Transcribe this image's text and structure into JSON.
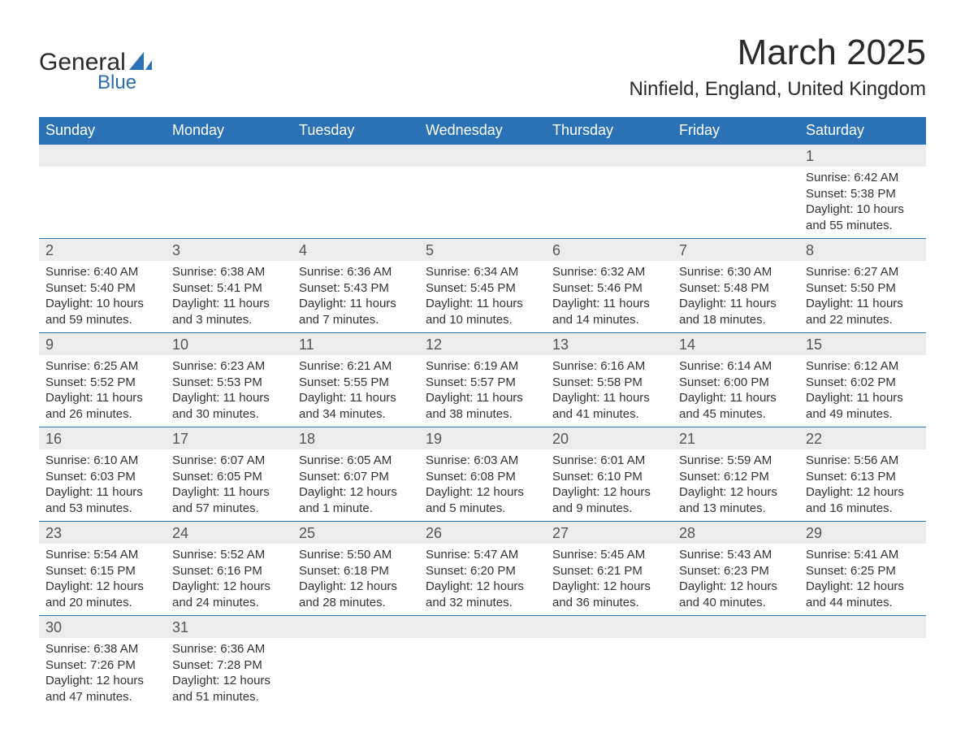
{
  "logo": {
    "line1": "General",
    "line2": "Blue",
    "icon_color": "#2a72b5"
  },
  "title": "March 2025",
  "location": "Ninfield, England, United Kingdom",
  "colors": {
    "header_bg": "#2a72b5",
    "header_fg": "#ffffff",
    "daynum_bg": "#ececec",
    "border": "#2a72b5",
    "text": "#333333"
  },
  "day_headers": [
    "Sunday",
    "Monday",
    "Tuesday",
    "Wednesday",
    "Thursday",
    "Friday",
    "Saturday"
  ],
  "weeks": [
    [
      null,
      null,
      null,
      null,
      null,
      null,
      {
        "n": "1",
        "sr": "Sunrise: 6:42 AM",
        "ss": "Sunset: 5:38 PM",
        "d1": "Daylight: 10 hours",
        "d2": "and 55 minutes."
      }
    ],
    [
      {
        "n": "2",
        "sr": "Sunrise: 6:40 AM",
        "ss": "Sunset: 5:40 PM",
        "d1": "Daylight: 10 hours",
        "d2": "and 59 minutes."
      },
      {
        "n": "3",
        "sr": "Sunrise: 6:38 AM",
        "ss": "Sunset: 5:41 PM",
        "d1": "Daylight: 11 hours",
        "d2": "and 3 minutes."
      },
      {
        "n": "4",
        "sr": "Sunrise: 6:36 AM",
        "ss": "Sunset: 5:43 PM",
        "d1": "Daylight: 11 hours",
        "d2": "and 7 minutes."
      },
      {
        "n": "5",
        "sr": "Sunrise: 6:34 AM",
        "ss": "Sunset: 5:45 PM",
        "d1": "Daylight: 11 hours",
        "d2": "and 10 minutes."
      },
      {
        "n": "6",
        "sr": "Sunrise: 6:32 AM",
        "ss": "Sunset: 5:46 PM",
        "d1": "Daylight: 11 hours",
        "d2": "and 14 minutes."
      },
      {
        "n": "7",
        "sr": "Sunrise: 6:30 AM",
        "ss": "Sunset: 5:48 PM",
        "d1": "Daylight: 11 hours",
        "d2": "and 18 minutes."
      },
      {
        "n": "8",
        "sr": "Sunrise: 6:27 AM",
        "ss": "Sunset: 5:50 PM",
        "d1": "Daylight: 11 hours",
        "d2": "and 22 minutes."
      }
    ],
    [
      {
        "n": "9",
        "sr": "Sunrise: 6:25 AM",
        "ss": "Sunset: 5:52 PM",
        "d1": "Daylight: 11 hours",
        "d2": "and 26 minutes."
      },
      {
        "n": "10",
        "sr": "Sunrise: 6:23 AM",
        "ss": "Sunset: 5:53 PM",
        "d1": "Daylight: 11 hours",
        "d2": "and 30 minutes."
      },
      {
        "n": "11",
        "sr": "Sunrise: 6:21 AM",
        "ss": "Sunset: 5:55 PM",
        "d1": "Daylight: 11 hours",
        "d2": "and 34 minutes."
      },
      {
        "n": "12",
        "sr": "Sunrise: 6:19 AM",
        "ss": "Sunset: 5:57 PM",
        "d1": "Daylight: 11 hours",
        "d2": "and 38 minutes."
      },
      {
        "n": "13",
        "sr": "Sunrise: 6:16 AM",
        "ss": "Sunset: 5:58 PM",
        "d1": "Daylight: 11 hours",
        "d2": "and 41 minutes."
      },
      {
        "n": "14",
        "sr": "Sunrise: 6:14 AM",
        "ss": "Sunset: 6:00 PM",
        "d1": "Daylight: 11 hours",
        "d2": "and 45 minutes."
      },
      {
        "n": "15",
        "sr": "Sunrise: 6:12 AM",
        "ss": "Sunset: 6:02 PM",
        "d1": "Daylight: 11 hours",
        "d2": "and 49 minutes."
      }
    ],
    [
      {
        "n": "16",
        "sr": "Sunrise: 6:10 AM",
        "ss": "Sunset: 6:03 PM",
        "d1": "Daylight: 11 hours",
        "d2": "and 53 minutes."
      },
      {
        "n": "17",
        "sr": "Sunrise: 6:07 AM",
        "ss": "Sunset: 6:05 PM",
        "d1": "Daylight: 11 hours",
        "d2": "and 57 minutes."
      },
      {
        "n": "18",
        "sr": "Sunrise: 6:05 AM",
        "ss": "Sunset: 6:07 PM",
        "d1": "Daylight: 12 hours",
        "d2": "and 1 minute."
      },
      {
        "n": "19",
        "sr": "Sunrise: 6:03 AM",
        "ss": "Sunset: 6:08 PM",
        "d1": "Daylight: 12 hours",
        "d2": "and 5 minutes."
      },
      {
        "n": "20",
        "sr": "Sunrise: 6:01 AM",
        "ss": "Sunset: 6:10 PM",
        "d1": "Daylight: 12 hours",
        "d2": "and 9 minutes."
      },
      {
        "n": "21",
        "sr": "Sunrise: 5:59 AM",
        "ss": "Sunset: 6:12 PM",
        "d1": "Daylight: 12 hours",
        "d2": "and 13 minutes."
      },
      {
        "n": "22",
        "sr": "Sunrise: 5:56 AM",
        "ss": "Sunset: 6:13 PM",
        "d1": "Daylight: 12 hours",
        "d2": "and 16 minutes."
      }
    ],
    [
      {
        "n": "23",
        "sr": "Sunrise: 5:54 AM",
        "ss": "Sunset: 6:15 PM",
        "d1": "Daylight: 12 hours",
        "d2": "and 20 minutes."
      },
      {
        "n": "24",
        "sr": "Sunrise: 5:52 AM",
        "ss": "Sunset: 6:16 PM",
        "d1": "Daylight: 12 hours",
        "d2": "and 24 minutes."
      },
      {
        "n": "25",
        "sr": "Sunrise: 5:50 AM",
        "ss": "Sunset: 6:18 PM",
        "d1": "Daylight: 12 hours",
        "d2": "and 28 minutes."
      },
      {
        "n": "26",
        "sr": "Sunrise: 5:47 AM",
        "ss": "Sunset: 6:20 PM",
        "d1": "Daylight: 12 hours",
        "d2": "and 32 minutes."
      },
      {
        "n": "27",
        "sr": "Sunrise: 5:45 AM",
        "ss": "Sunset: 6:21 PM",
        "d1": "Daylight: 12 hours",
        "d2": "and 36 minutes."
      },
      {
        "n": "28",
        "sr": "Sunrise: 5:43 AM",
        "ss": "Sunset: 6:23 PM",
        "d1": "Daylight: 12 hours",
        "d2": "and 40 minutes."
      },
      {
        "n": "29",
        "sr": "Sunrise: 5:41 AM",
        "ss": "Sunset: 6:25 PM",
        "d1": "Daylight: 12 hours",
        "d2": "and 44 minutes."
      }
    ],
    [
      {
        "n": "30",
        "sr": "Sunrise: 6:38 AM",
        "ss": "Sunset: 7:26 PM",
        "d1": "Daylight: 12 hours",
        "d2": "and 47 minutes."
      },
      {
        "n": "31",
        "sr": "Sunrise: 6:36 AM",
        "ss": "Sunset: 7:28 PM",
        "d1": "Daylight: 12 hours",
        "d2": "and 51 minutes."
      },
      null,
      null,
      null,
      null,
      null
    ]
  ]
}
